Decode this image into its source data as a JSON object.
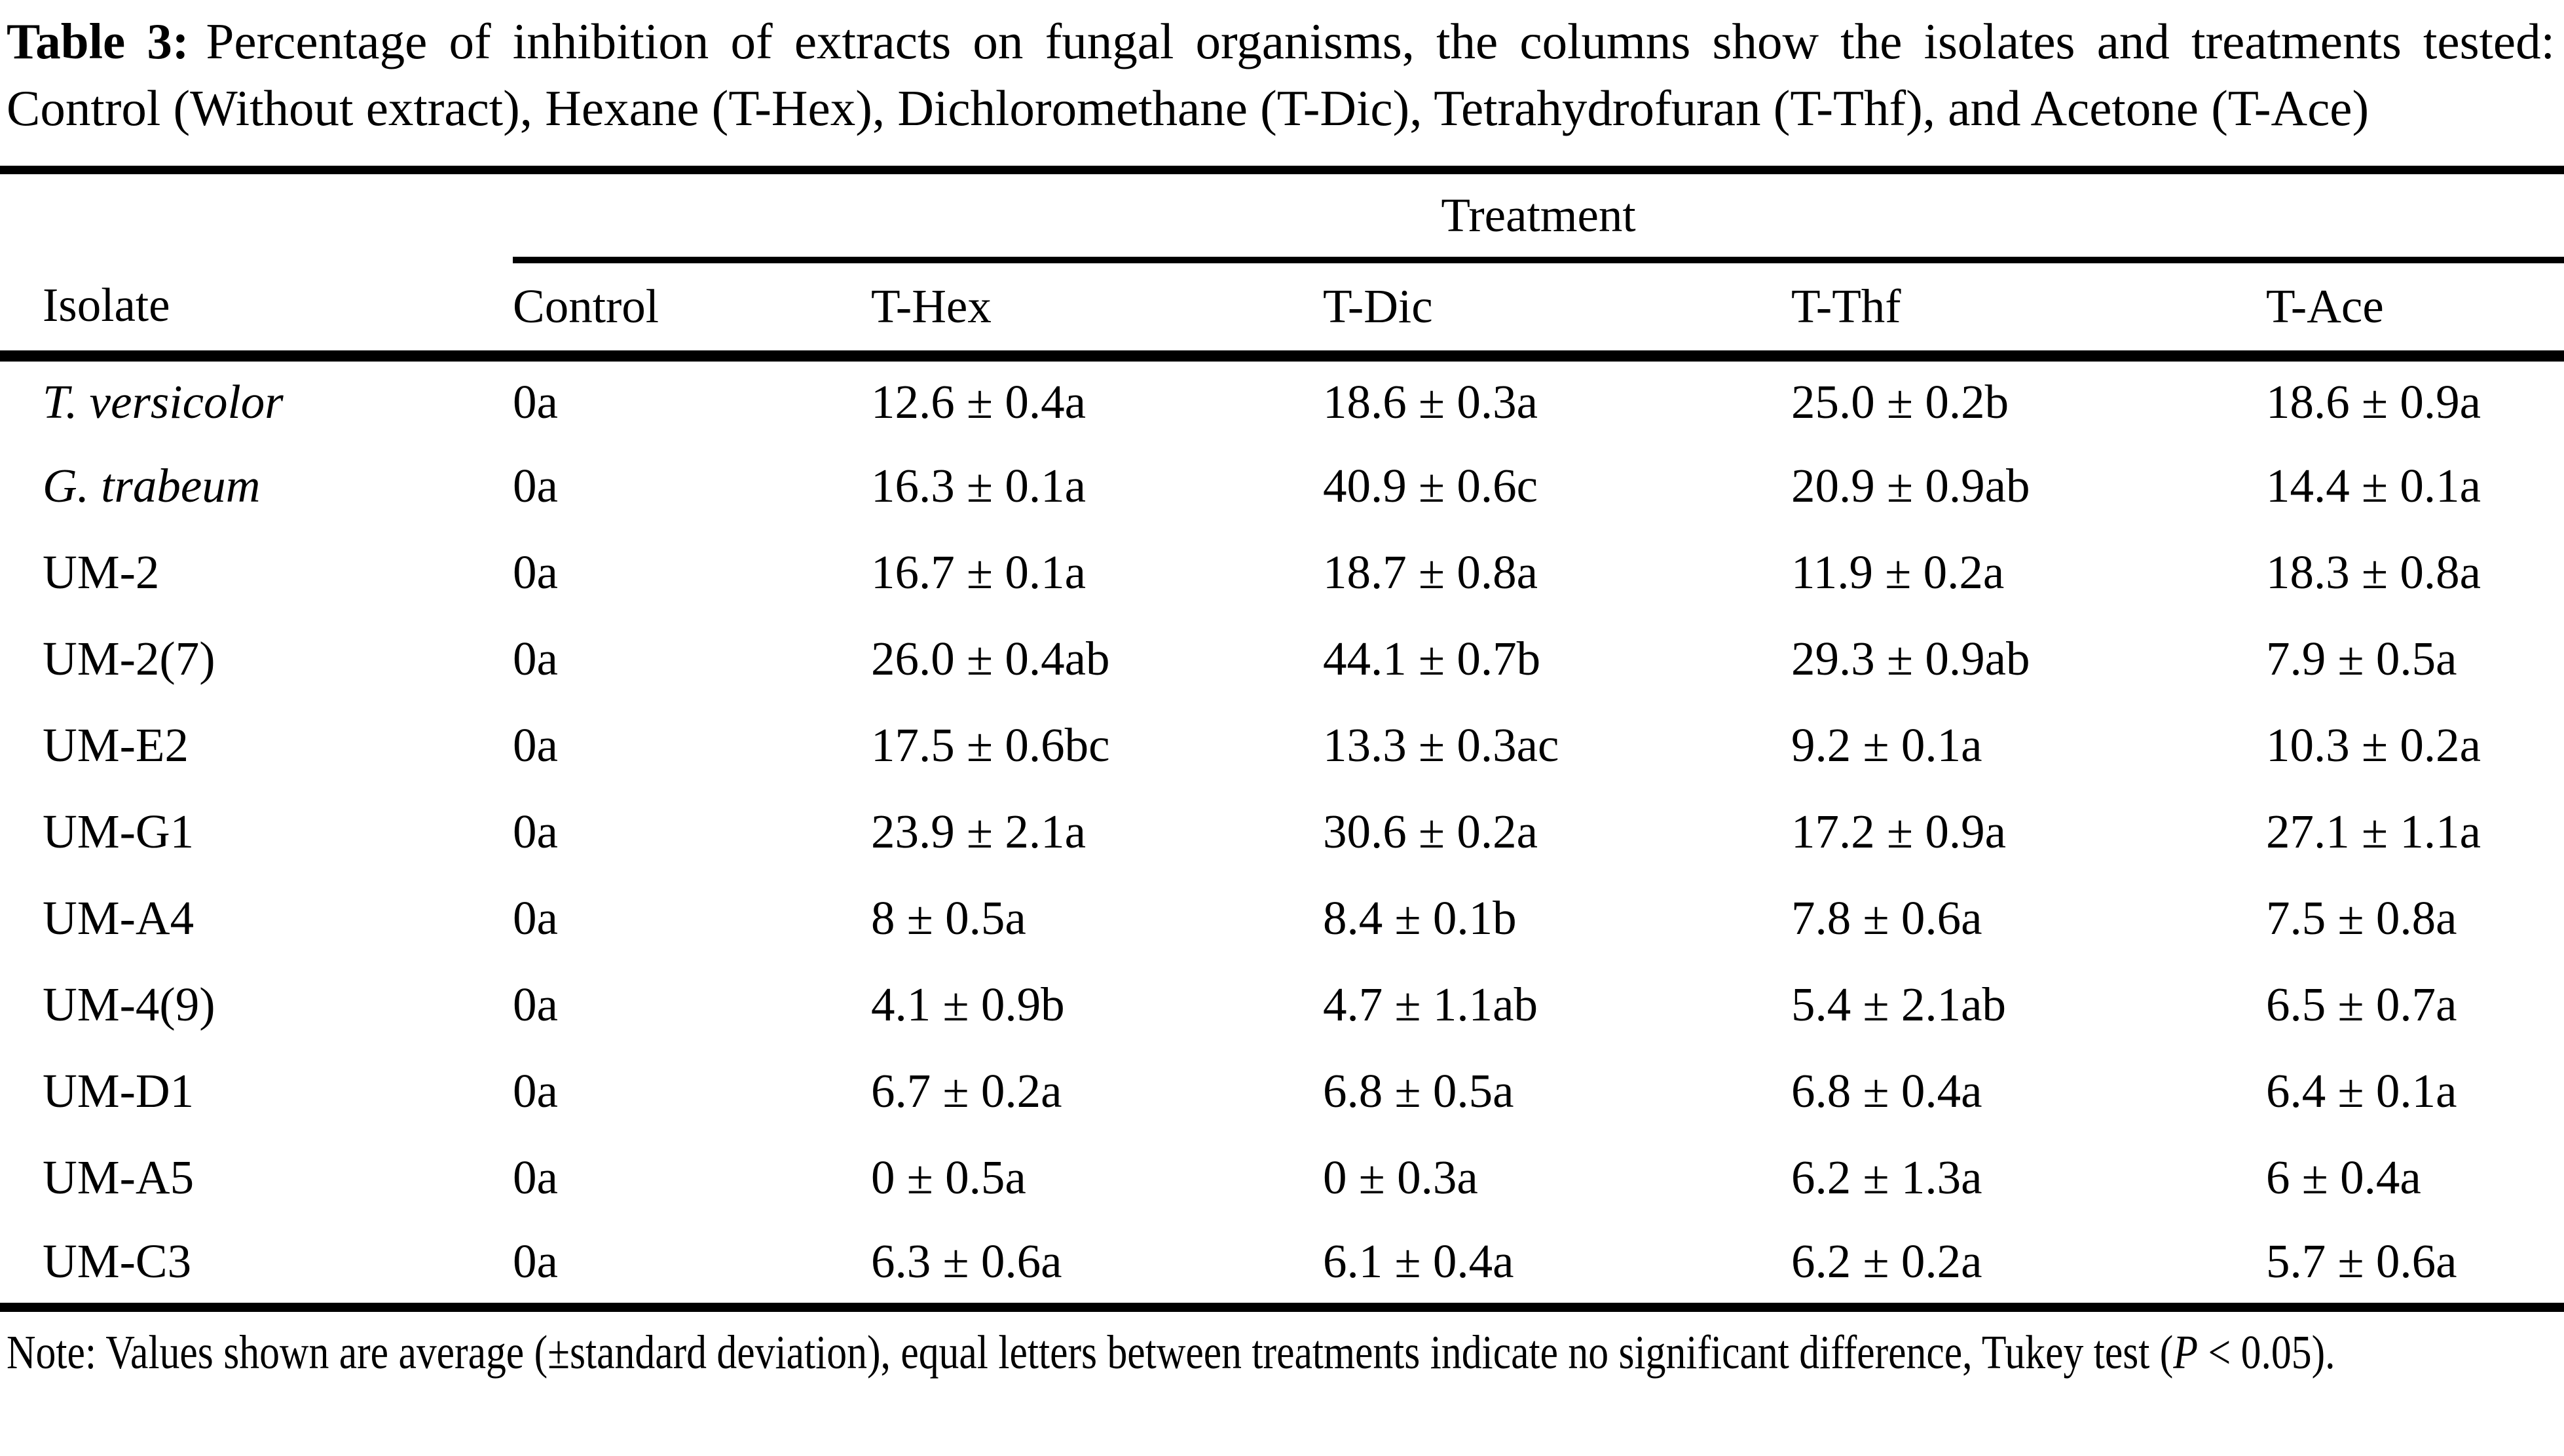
{
  "caption": {
    "label": "Table 3:",
    "text": "Percentage of inhibition of extracts on fungal organisms, the columns show the isolates and treatments tested: Control (Without extract), Hexane (T-Hex), Dichloromethane (T-Dic), Tetrahydrofuran (T-Thf), and Acetone (T-Ace)"
  },
  "table": {
    "treatment_header": "Treatment",
    "columns": [
      "Isolate",
      "Control",
      "T-Hex",
      "T-Dic",
      "T-Thf",
      "T-Ace"
    ],
    "rows": [
      {
        "isolate": "T. versicolor",
        "italic": true,
        "values": [
          "0a",
          "12.6 ± 0.4a",
          "18.6 ± 0.3a",
          "25.0 ± 0.2b",
          "18.6 ± 0.9a"
        ]
      },
      {
        "isolate": "G. trabeum",
        "italic": true,
        "values": [
          "0a",
          "16.3 ± 0.1a",
          "40.9 ± 0.6c",
          "20.9 ± 0.9ab",
          "14.4 ± 0.1a"
        ]
      },
      {
        "isolate": "UM-2",
        "italic": false,
        "values": [
          "0a",
          "16.7 ± 0.1a",
          "18.7 ± 0.8a",
          "11.9 ± 0.2a",
          "18.3 ± 0.8a"
        ]
      },
      {
        "isolate": "UM-2(7)",
        "italic": false,
        "values": [
          "0a",
          "26.0 ± 0.4ab",
          "44.1 ± 0.7b",
          "29.3 ± 0.9ab",
          "7.9 ± 0.5a"
        ]
      },
      {
        "isolate": "UM-E2",
        "italic": false,
        "values": [
          "0a",
          "17.5 ± 0.6bc",
          "13.3 ± 0.3ac",
          "9.2 ± 0.1a",
          "10.3 ± 0.2a"
        ]
      },
      {
        "isolate": "UM-G1",
        "italic": false,
        "values": [
          "0a",
          "23.9 ± 2.1a",
          "30.6 ± 0.2a",
          "17.2 ± 0.9a",
          "27.1 ± 1.1a"
        ]
      },
      {
        "isolate": "UM-A4",
        "italic": false,
        "values": [
          "0a",
          "8 ± 0.5a",
          "8.4 ± 0.1b",
          "7.8 ± 0.6a",
          "7.5 ± 0.8a"
        ]
      },
      {
        "isolate": "UM-4(9)",
        "italic": false,
        "values": [
          "0a",
          "4.1 ± 0.9b",
          "4.7 ± 1.1ab",
          "5.4 ± 2.1ab",
          "6.5 ± 0.7a"
        ]
      },
      {
        "isolate": "UM-D1",
        "italic": false,
        "values": [
          "0a",
          "6.7 ± 0.2a",
          "6.8 ± 0.5a",
          "6.8 ± 0.4a",
          "6.4 ± 0.1a"
        ]
      },
      {
        "isolate": "UM-A5",
        "italic": false,
        "values": [
          "0a",
          "0 ± 0.5a",
          "0 ± 0.3a",
          "6.2 ± 1.3a",
          "6 ± 0.4a"
        ]
      },
      {
        "isolate": "UM-C3",
        "italic": false,
        "values": [
          "0a",
          "6.3 ± 0.6a",
          "6.1 ± 0.4a",
          "6.2 ± 0.2a",
          "5.7 ± 0.6a"
        ]
      }
    ]
  },
  "footnote": {
    "before_p": "Note: Values shown are average (±standard deviation), equal letters between treatments indicate no significant difference, Tukey test (",
    "p": "P",
    "after_p": " < 0.05)."
  }
}
